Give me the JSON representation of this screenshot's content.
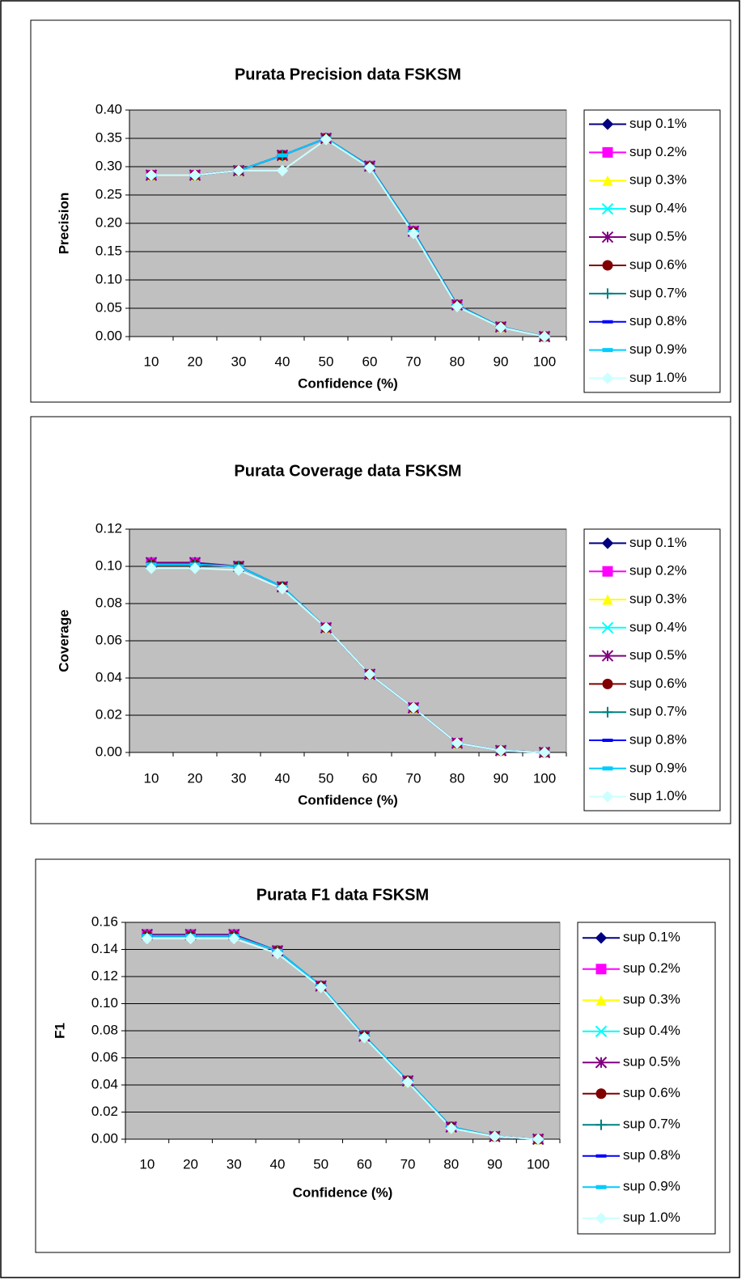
{
  "chart_data": [
    {
      "type": "line",
      "title": "Purata Precision data FSKSM",
      "x_label": "Confidence (%)",
      "y_label": "Precision",
      "categories": [
        "10",
        "20",
        "30",
        "40",
        "50",
        "60",
        "70",
        "80",
        "90",
        "100"
      ],
      "ylim": [
        0,
        0.4
      ],
      "yticks": [
        {
          "value": 0,
          "label": "0.00"
        },
        {
          "value": 0.05,
          "label": "0.05"
        },
        {
          "value": 0.1,
          "label": "0.10"
        },
        {
          "value": 0.15,
          "label": "0.15"
        },
        {
          "value": 0.2,
          "label": "0.20"
        },
        {
          "value": 0.25,
          "label": "0.25"
        },
        {
          "value": 0.3,
          "label": "0.30"
        },
        {
          "value": 0.35,
          "label": "0.35"
        },
        {
          "value": 0.4,
          "label": "0.40"
        }
      ],
      "grid": true,
      "legend": "right",
      "plot_background": "#c0c0c0",
      "series": [
        {
          "name": "sup 0.1%",
          "color": "#000080",
          "marker": "diamond",
          "values": [
            0.285,
            0.285,
            0.293,
            0.32,
            0.35,
            0.301,
            0.186,
            0.056,
            0.017,
            0
          ]
        },
        {
          "name": "sup 0.2%",
          "color": "#ff00ff",
          "marker": "square",
          "values": [
            0.285,
            0.285,
            0.293,
            0.32,
            0.35,
            0.301,
            0.186,
            0.056,
            0.017,
            0
          ]
        },
        {
          "name": "sup 0.3%",
          "color": "#ffff00",
          "marker": "triangle",
          "values": [
            0.285,
            0.285,
            0.293,
            0.32,
            0.35,
            0.301,
            0.186,
            0.056,
            0.017,
            0
          ]
        },
        {
          "name": "sup 0.4%",
          "color": "#00ffff",
          "marker": "x",
          "values": [
            0.285,
            0.285,
            0.293,
            0.32,
            0.35,
            0.301,
            0.186,
            0.056,
            0.017,
            0
          ]
        },
        {
          "name": "sup 0.5%",
          "color": "#800080",
          "marker": "asterisk",
          "values": [
            0.285,
            0.285,
            0.293,
            0.32,
            0.35,
            0.301,
            0.186,
            0.056,
            0.017,
            0
          ]
        },
        {
          "name": "sup 0.6%",
          "color": "#800000",
          "marker": "circle",
          "values": [
            0.285,
            0.285,
            0.293,
            0.32,
            0.35,
            0.3,
            0.185,
            0.055,
            0.017,
            0
          ]
        },
        {
          "name": "sup 0.7%",
          "color": "#008080",
          "marker": "plus",
          "values": [
            0.285,
            0.285,
            0.293,
            0.32,
            0.35,
            0.3,
            0.185,
            0.055,
            0.017,
            0
          ]
        },
        {
          "name": "sup 0.8%",
          "color": "#0000ff",
          "marker": "dash",
          "values": [
            0.285,
            0.285,
            0.293,
            0.32,
            0.35,
            0.3,
            0.185,
            0.055,
            0.017,
            0
          ]
        },
        {
          "name": "sup 0.9%",
          "color": "#00ccff",
          "marker": "bar",
          "values": [
            0.285,
            0.285,
            0.293,
            0.32,
            0.35,
            0.3,
            0.185,
            0.055,
            0.017,
            0
          ]
        },
        {
          "name": "sup 1.0%",
          "color": "#ccffff",
          "marker": "diamond",
          "values": [
            0.285,
            0.285,
            0.293,
            0.293,
            0.348,
            0.298,
            0.182,
            0.053,
            0.016,
            0
          ]
        }
      ]
    },
    {
      "type": "line",
      "title": "Purata Coverage data FSKSM",
      "x_label": "Confidence (%)",
      "y_label": "Coverage",
      "categories": [
        "10",
        "20",
        "30",
        "40",
        "50",
        "60",
        "70",
        "80",
        "90",
        "100"
      ],
      "ylim": [
        0,
        0.12
      ],
      "yticks": [
        {
          "value": 0,
          "label": "0.00"
        },
        {
          "value": 0.02,
          "label": "0.02"
        },
        {
          "value": 0.04,
          "label": "0.04"
        },
        {
          "value": 0.06,
          "label": "0.06"
        },
        {
          "value": 0.08,
          "label": "0.08"
        },
        {
          "value": 0.1,
          "label": "0.10"
        },
        {
          "value": 0.12,
          "label": "0.12"
        }
      ],
      "grid": true,
      "legend": "right",
      "plot_background": "#c0c0c0",
      "series": [
        {
          "name": "sup 0.1%",
          "color": "#000080",
          "marker": "diamond",
          "values": [
            0.102,
            0.102,
            0.1,
            0.089,
            0.067,
            0.042,
            0.024,
            0.005,
            0.001,
            0
          ]
        },
        {
          "name": "sup 0.2%",
          "color": "#ff00ff",
          "marker": "square",
          "values": [
            0.102,
            0.102,
            0.1,
            0.089,
            0.067,
            0.042,
            0.024,
            0.005,
            0.001,
            0
          ]
        },
        {
          "name": "sup 0.3%",
          "color": "#ffff00",
          "marker": "triangle",
          "values": [
            0.102,
            0.102,
            0.1,
            0.089,
            0.067,
            0.042,
            0.024,
            0.005,
            0.001,
            0
          ]
        },
        {
          "name": "sup 0.4%",
          "color": "#00ffff",
          "marker": "x",
          "values": [
            0.102,
            0.102,
            0.1,
            0.089,
            0.067,
            0.042,
            0.024,
            0.005,
            0.001,
            0
          ]
        },
        {
          "name": "sup 0.5%",
          "color": "#800080",
          "marker": "asterisk",
          "values": [
            0.102,
            0.102,
            0.1,
            0.089,
            0.067,
            0.042,
            0.024,
            0.005,
            0.001,
            0
          ]
        },
        {
          "name": "sup 0.6%",
          "color": "#800000",
          "marker": "circle",
          "values": [
            0.101,
            0.101,
            0.1,
            0.089,
            0.067,
            0.042,
            0.024,
            0.005,
            0.001,
            0
          ]
        },
        {
          "name": "sup 0.7%",
          "color": "#008080",
          "marker": "plus",
          "values": [
            0.101,
            0.101,
            0.1,
            0.089,
            0.067,
            0.042,
            0.024,
            0.005,
            0.001,
            0
          ]
        },
        {
          "name": "sup 0.8%",
          "color": "#0000ff",
          "marker": "dash",
          "values": [
            0.101,
            0.101,
            0.1,
            0.089,
            0.067,
            0.042,
            0.024,
            0.005,
            0.001,
            0
          ]
        },
        {
          "name": "sup 0.9%",
          "color": "#00ccff",
          "marker": "bar",
          "values": [
            0.101,
            0.101,
            0.1,
            0.089,
            0.067,
            0.042,
            0.024,
            0.005,
            0.001,
            0
          ]
        },
        {
          "name": "sup 1.0%",
          "color": "#ccffff",
          "marker": "diamond",
          "values": [
            0.099,
            0.099,
            0.098,
            0.088,
            0.067,
            0.042,
            0.024,
            0.005,
            0.001,
            0
          ]
        }
      ]
    },
    {
      "type": "line",
      "title": "Purata F1 data FSKSM",
      "x_label": "Confidence (%)",
      "y_label": "F1",
      "categories": [
        "10",
        "20",
        "30",
        "40",
        "50",
        "60",
        "70",
        "80",
        "90",
        "100"
      ],
      "ylim": [
        0,
        0.16
      ],
      "yticks": [
        {
          "value": 0,
          "label": "0.00"
        },
        {
          "value": 0.02,
          "label": "0.02"
        },
        {
          "value": 0.04,
          "label": "0.04"
        },
        {
          "value": 0.06,
          "label": "0.06"
        },
        {
          "value": 0.08,
          "label": "0.08"
        },
        {
          "value": 0.1,
          "label": "0.10"
        },
        {
          "value": 0.12,
          "label": "0.12"
        },
        {
          "value": 0.14,
          "label": "0.14"
        },
        {
          "value": 0.16,
          "label": "0.16"
        }
      ],
      "grid": true,
      "legend": "right",
      "plot_background": "#c0c0c0",
      "series": [
        {
          "name": "sup 0.1%",
          "color": "#000080",
          "marker": "diamond",
          "values": [
            0.151,
            0.151,
            0.151,
            0.139,
            0.113,
            0.076,
            0.043,
            0.009,
            0.002,
            0
          ]
        },
        {
          "name": "sup 0.2%",
          "color": "#ff00ff",
          "marker": "square",
          "values": [
            0.151,
            0.151,
            0.151,
            0.139,
            0.113,
            0.076,
            0.043,
            0.009,
            0.002,
            0
          ]
        },
        {
          "name": "sup 0.3%",
          "color": "#ffff00",
          "marker": "triangle",
          "values": [
            0.151,
            0.151,
            0.151,
            0.139,
            0.113,
            0.076,
            0.043,
            0.009,
            0.002,
            0
          ]
        },
        {
          "name": "sup 0.4%",
          "color": "#00ffff",
          "marker": "x",
          "values": [
            0.151,
            0.151,
            0.151,
            0.139,
            0.113,
            0.076,
            0.043,
            0.009,
            0.002,
            0
          ]
        },
        {
          "name": "sup 0.5%",
          "color": "#800080",
          "marker": "asterisk",
          "values": [
            0.151,
            0.151,
            0.151,
            0.139,
            0.113,
            0.076,
            0.043,
            0.009,
            0.002,
            0
          ]
        },
        {
          "name": "sup 0.6%",
          "color": "#800000",
          "marker": "circle",
          "values": [
            0.15,
            0.15,
            0.15,
            0.139,
            0.113,
            0.076,
            0.043,
            0.009,
            0.002,
            0
          ]
        },
        {
          "name": "sup 0.7%",
          "color": "#008080",
          "marker": "plus",
          "values": [
            0.15,
            0.15,
            0.15,
            0.139,
            0.113,
            0.076,
            0.043,
            0.009,
            0.002,
            0
          ]
        },
        {
          "name": "sup 0.8%",
          "color": "#0000ff",
          "marker": "dash",
          "values": [
            0.15,
            0.15,
            0.15,
            0.139,
            0.113,
            0.076,
            0.043,
            0.009,
            0.002,
            0
          ]
        },
        {
          "name": "sup 0.9%",
          "color": "#00ccff",
          "marker": "bar",
          "values": [
            0.15,
            0.15,
            0.15,
            0.139,
            0.113,
            0.076,
            0.043,
            0.009,
            0.002,
            0
          ]
        },
        {
          "name": "sup 1.0%",
          "color": "#ccffff",
          "marker": "diamond",
          "values": [
            0.148,
            0.148,
            0.148,
            0.137,
            0.112,
            0.075,
            0.042,
            0.008,
            0.002,
            0
          ]
        }
      ]
    }
  ]
}
